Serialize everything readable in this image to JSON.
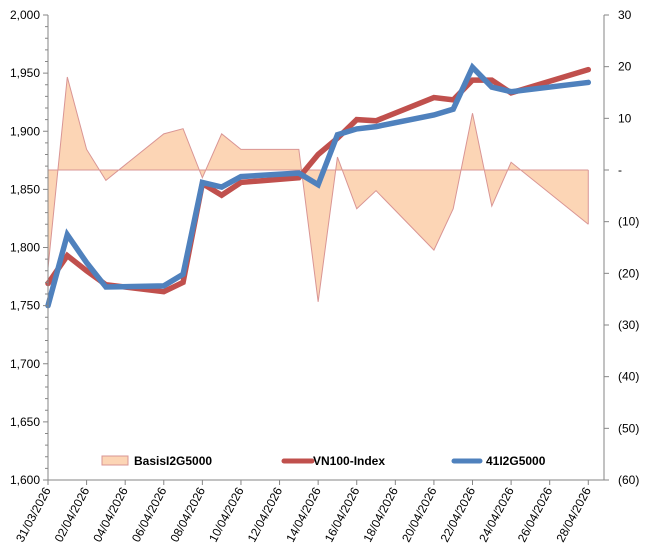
{
  "chart_data": {
    "type": "line",
    "title": "",
    "xlabel": "",
    "ylabel": "",
    "y2label": "",
    "ylim": [
      1600,
      2000
    ],
    "y2lim": [
      -60,
      30
    ],
    "grid": false,
    "legend_position": "bottom-inside",
    "x_tick_labels": [
      "31/03/2026",
      "02/04/2026",
      "04/04/2026",
      "06/04/2026",
      "08/04/2026",
      "10/04/2026",
      "12/04/2026",
      "14/04/2026",
      "16/04/2026",
      "18/04/2026",
      "20/04/2026",
      "22/04/2026",
      "24/04/2026",
      "26/04/2026",
      "28/04/2026"
    ],
    "y_tick_labels": [
      "1,600",
      "1,650",
      "1,700",
      "1,750",
      "1,800",
      "1,850",
      "1,900",
      "1,950",
      "2,000"
    ],
    "y_ticks": [
      1600,
      1650,
      1700,
      1750,
      1800,
      1850,
      1900,
      1950,
      2000
    ],
    "y2_tick_labels": [
      "(60)",
      "(50)",
      "(40)",
      "(30)",
      "(20)",
      "(10)",
      "-",
      "10",
      "20",
      "30"
    ],
    "y2_ticks": [
      -60,
      -50,
      -40,
      -30,
      -20,
      -10,
      0,
      10,
      20,
      30
    ],
    "x": [
      0,
      1,
      2,
      3,
      6,
      7,
      8,
      9,
      10,
      13,
      14,
      15,
      16,
      17,
      20,
      21,
      22,
      23,
      24,
      28
    ],
    "dates": [
      "31/03/2026",
      "01/04/2026",
      "02/04/2026",
      "03/04/2026",
      "06/04/2026",
      "07/04/2026",
      "08/04/2026",
      "09/04/2026",
      "10/04/2026",
      "13/04/2026",
      "14/04/2026",
      "15/04/2026",
      "16/04/2026",
      "17/04/2026",
      "20/04/2026",
      "21/04/2026",
      "22/04/2026",
      "23/04/2026",
      "24/04/2026",
      "28/04/2026"
    ],
    "series": [
      {
        "name": "BasisI2G5000",
        "type": "area",
        "axis": "right",
        "fill": "#FCD5B5",
        "stroke": "#D99594",
        "values": [
          -19,
          18,
          4,
          -2,
          7,
          8,
          -1.5,
          7,
          4,
          4,
          -25.5,
          2.5,
          -7.5,
          -4,
          -15.5,
          -7.5,
          11,
          -7,
          1.5,
          -10.5
        ]
      },
      {
        "name": "VN100-Index",
        "type": "line",
        "axis": "left",
        "color": "#C0504D",
        "values": [
          1769,
          1793,
          1780,
          1768,
          1762,
          1770,
          1855,
          1845,
          1856,
          1860,
          1880,
          1894,
          1910,
          1909,
          1929,
          1927,
          1944,
          1944,
          1933,
          1953
        ]
      },
      {
        "name": "41I2G5000",
        "type": "line",
        "axis": "left",
        "color": "#4F81BD",
        "values": [
          1750,
          1811,
          1787,
          1766,
          1767,
          1777,
          1856,
          1852,
          1861,
          1864,
          1854,
          1897,
          1902,
          1904,
          1914,
          1919,
          1955,
          1938,
          1934,
          1942
        ]
      }
    ],
    "legend": [
      "BasisI2G5000",
      "VN100-Index",
      "41I2G5000"
    ]
  }
}
